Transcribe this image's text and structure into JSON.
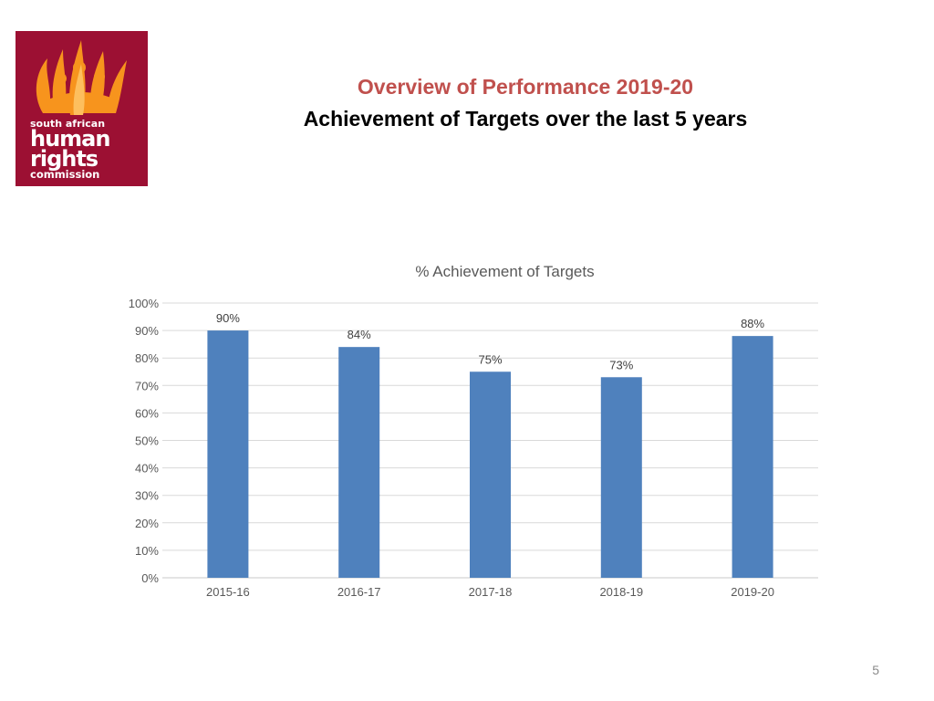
{
  "header": {
    "title": "Overview of Performance 2019-20",
    "subtitle": "Achievement of Targets over the last 5 years"
  },
  "logo": {
    "line1": "south african",
    "line2": "human",
    "line3": "rights",
    "line4": "commission",
    "background_color": "#9c1033",
    "flame_color": "#f7941d"
  },
  "slide": {
    "page_number": "5"
  },
  "chart_data": {
    "type": "bar",
    "title": "% Achievement of Targets",
    "categories": [
      "2015-16",
      "2016-17",
      "2017-18",
      "2018-19",
      "2019-20"
    ],
    "values": [
      90,
      84,
      75,
      73,
      88
    ],
    "data_labels": [
      "90%",
      "84%",
      "75%",
      "73%",
      "88%"
    ],
    "ylim": [
      0,
      100
    ],
    "yticks": [
      0,
      10,
      20,
      30,
      40,
      50,
      60,
      70,
      80,
      90,
      100
    ],
    "ytick_labels": [
      "0%",
      "10%",
      "20%",
      "30%",
      "40%",
      "50%",
      "60%",
      "70%",
      "80%",
      "90%",
      "100%"
    ],
    "xlabel": "",
    "ylabel": "",
    "grid": true,
    "legend": "none",
    "bar_color": "#4f81bd"
  }
}
